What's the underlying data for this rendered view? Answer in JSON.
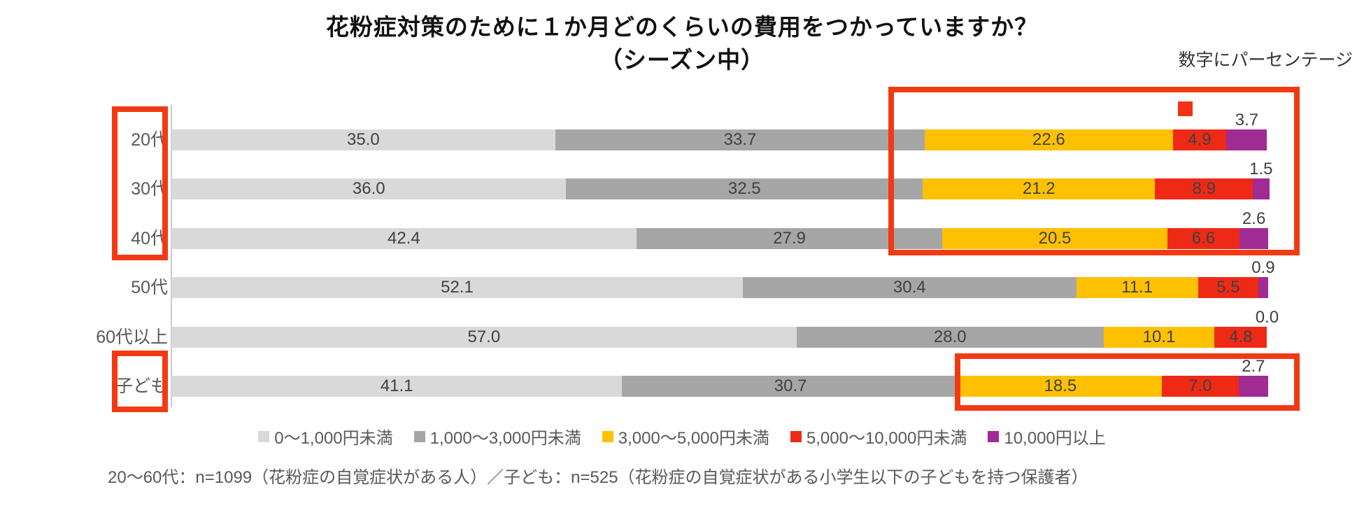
{
  "title": {
    "line1": "花粉症対策のために１か月どのくらいの費用をつかっていますか？",
    "line2": "（シーズン中）"
  },
  "note": "数字にパーセンテージ",
  "chart_data": {
    "type": "bar",
    "orientation": "horizontal",
    "stacked": true,
    "categories": [
      "20代",
      "30代",
      "40代",
      "50代",
      "60代以上",
      "子ども"
    ],
    "series": [
      {
        "name": "0～1,000円未満",
        "color": "#d9d9d9",
        "values": [
          35.0,
          36.0,
          42.4,
          52.1,
          57.0,
          41.1
        ]
      },
      {
        "name": "1,000～3,000円未満",
        "color": "#a6a6a6",
        "values": [
          33.7,
          32.5,
          27.9,
          30.4,
          28.0,
          30.7
        ]
      },
      {
        "name": "3,000～5,000円未満",
        "color": "#fdc101",
        "values": [
          22.6,
          21.2,
          20.5,
          11.1,
          10.1,
          18.5
        ]
      },
      {
        "name": "5,000～10,000円未満",
        "color": "#ee2a16",
        "values": [
          4.9,
          8.9,
          6.6,
          5.5,
          4.8,
          7.0
        ]
      },
      {
        "name": "10,000円以上",
        "color": "#a02b93",
        "values": [
          3.7,
          1.5,
          2.6,
          0.9,
          0.0,
          2.7
        ]
      }
    ],
    "value_labels": "percent_one_decimal",
    "xlim": [
      0,
      100
    ],
    "legend_position": "bottom",
    "grid": false
  },
  "annotations": {
    "highlight_color": "#f23a12",
    "boxes": [
      {
        "target": "row-labels-20-40dai"
      },
      {
        "target": "row-label-kodomo"
      },
      {
        "target": "segments-3000yen-and-over-rows-20-40dai"
      },
      {
        "target": "segments-3000yen-and-over-row-kodomo"
      }
    ],
    "marker": {
      "shape": "small-red-square",
      "near_value": "3.7"
    }
  },
  "footnote": "20～60代：n=1099（花粉症の自覚症状がある人）／子ども：n=525（花粉症の自覚症状がある小学生以下の子どもを持つ保護者）"
}
